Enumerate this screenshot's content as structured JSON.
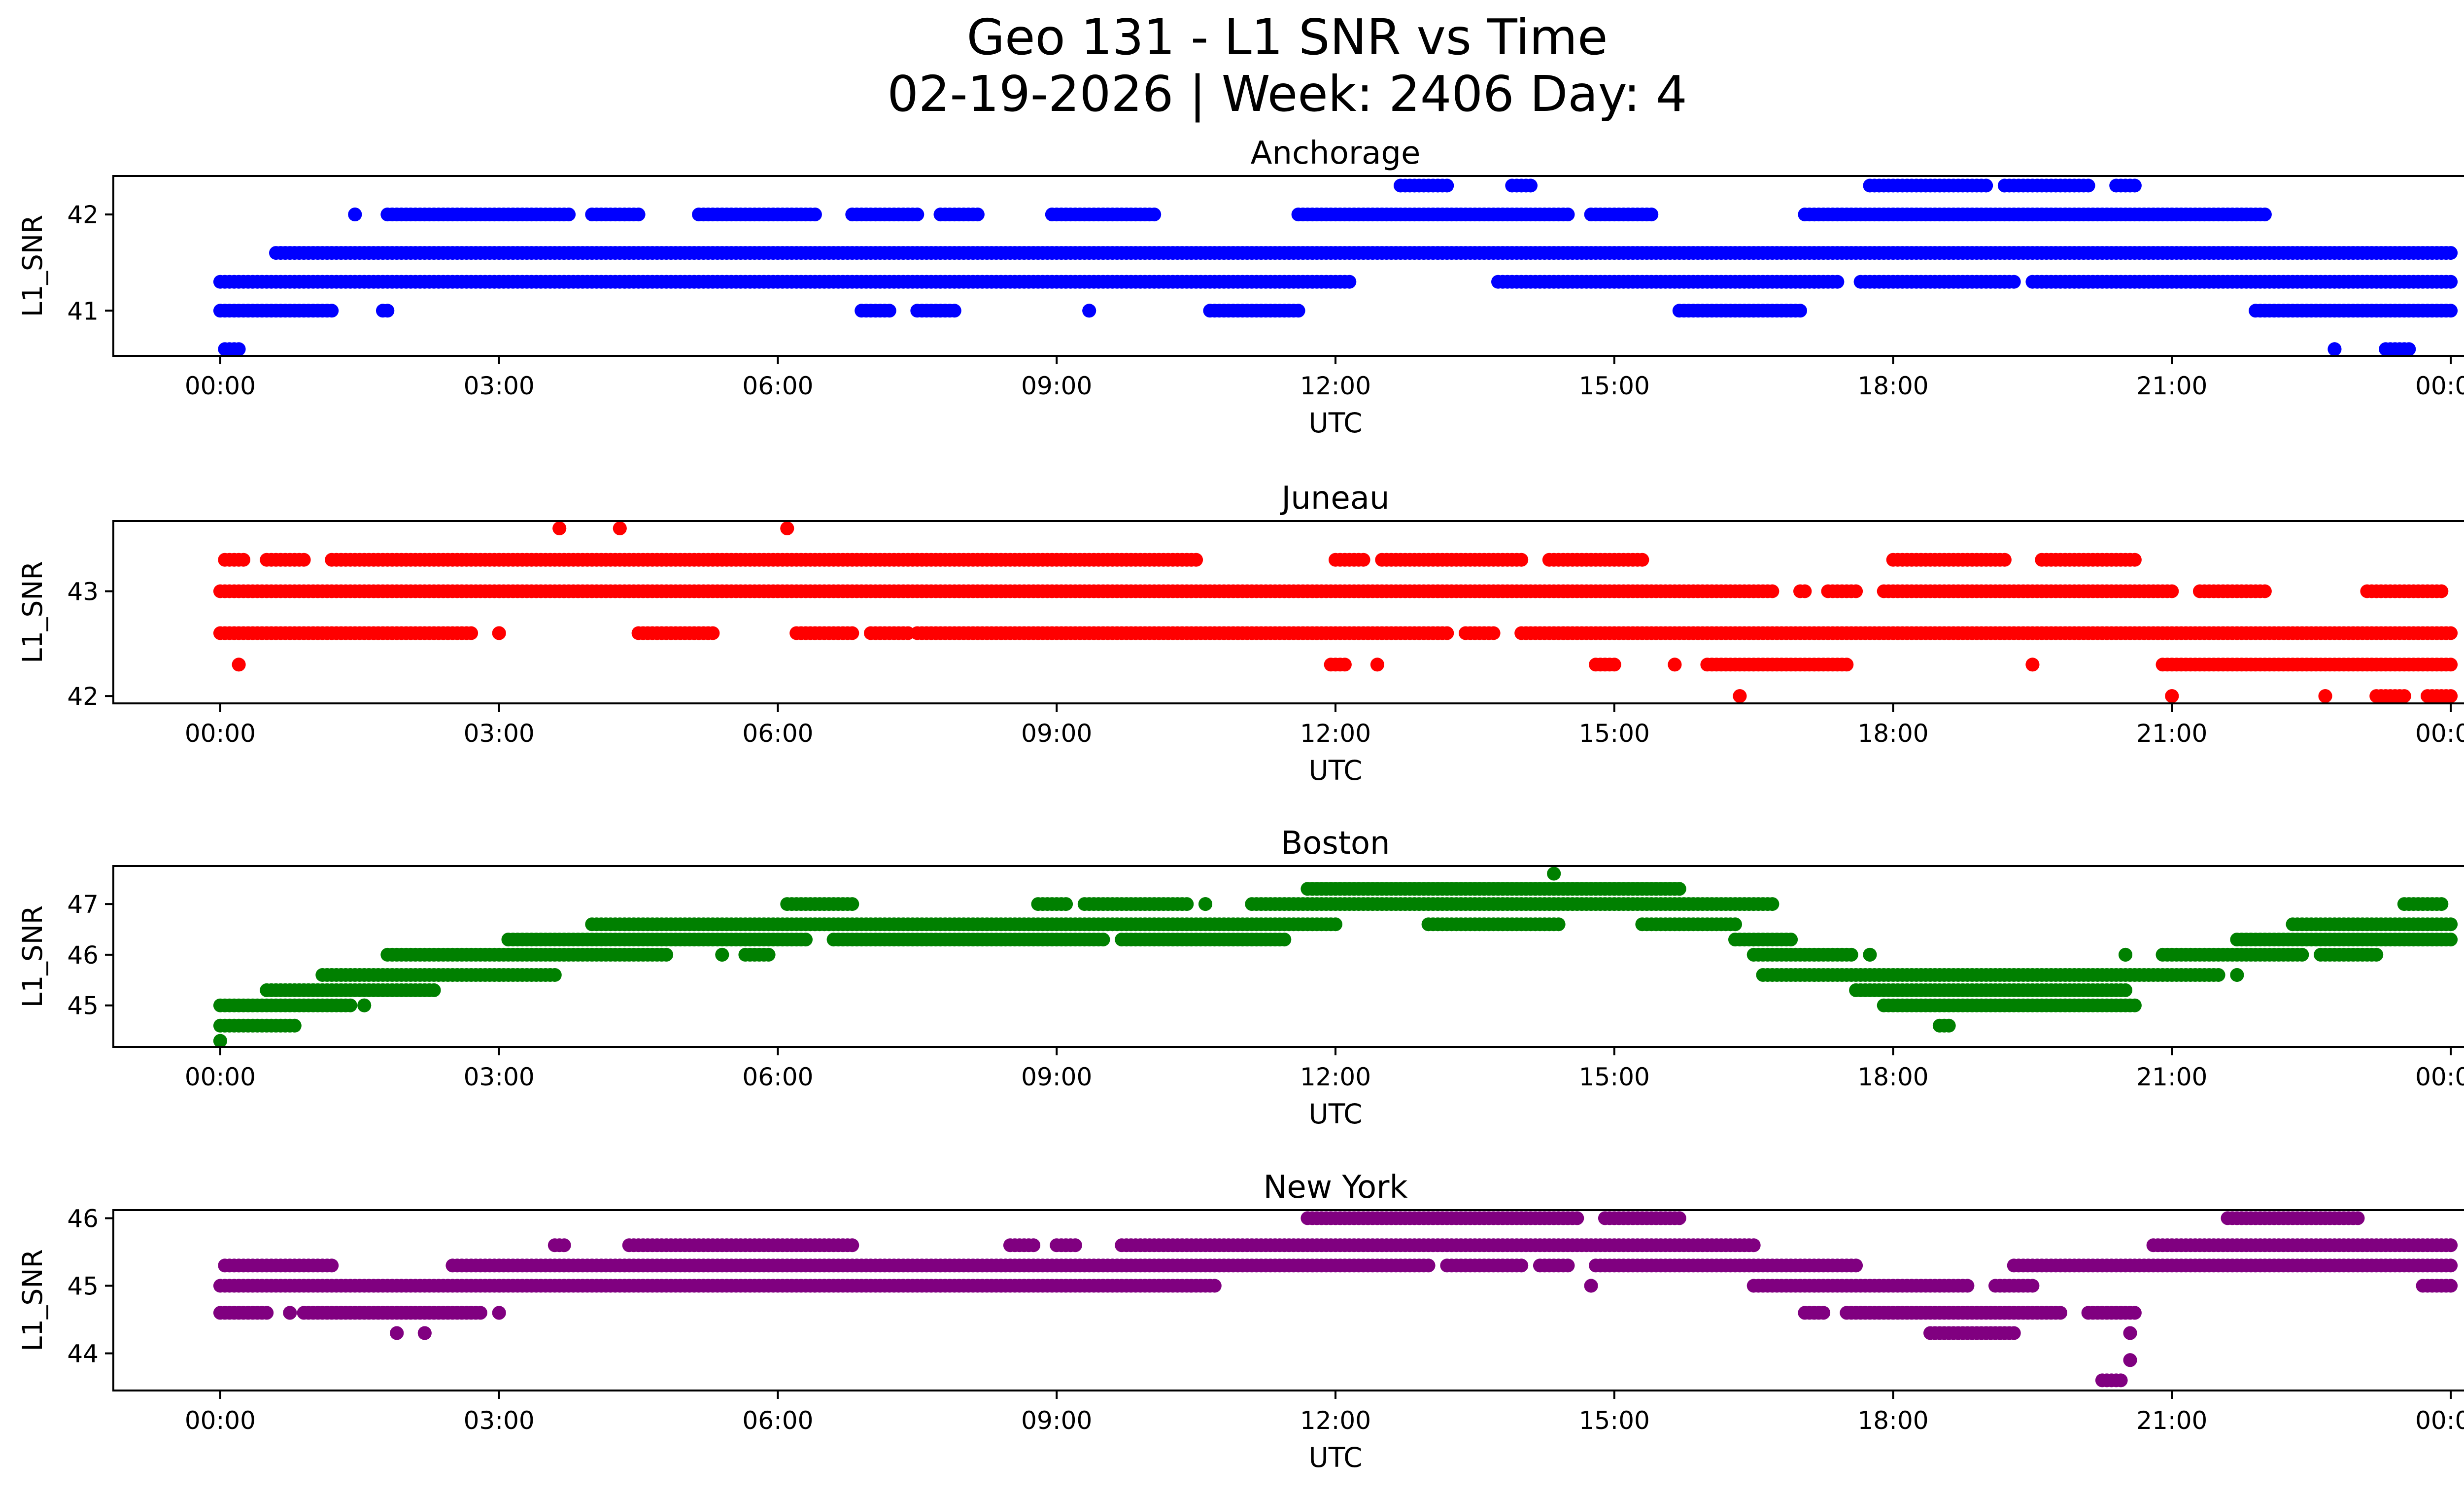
{
  "figure": {
    "title_line1": "Geo 131 - L1 SNR vs Time",
    "title_line2": "02-19-2026 | Week: 2406 Day: 4"
  },
  "chart_data": [
    {
      "type": "scatter",
      "title": "Anchorage",
      "xlabel": "UTC",
      "ylabel": "L1_SNR",
      "color": "#0000ff",
      "x_unit": "hours_utc",
      "xlim": [
        -1.15,
        25.15
      ],
      "ylim": [
        40.53,
        42.4
      ],
      "xticks": [
        0,
        3,
        6,
        9,
        12,
        15,
        18,
        21,
        24
      ],
      "xtick_labels": [
        "00:00",
        "03:00",
        "06:00",
        "09:00",
        "12:00",
        "15:00",
        "18:00",
        "21:00",
        "00:00"
      ],
      "yticks": [
        41,
        42
      ],
      "ytick_labels": [
        "41",
        "42"
      ],
      "bands": [
        {
          "y": 41.3,
          "segments": [
            [
              0,
              12.15
            ],
            [
              13.75,
              17.4
            ],
            [
              17.65,
              19.3
            ],
            [
              19.5,
              24
            ]
          ]
        },
        {
          "y": 41.6,
          "segments": [
            [
              0.6,
              24
            ]
          ]
        },
        {
          "y": 42.0,
          "segments": [
            [
              1.45,
              1.45
            ],
            [
              1.8,
              3.75
            ],
            [
              4.0,
              4.5
            ],
            [
              5.15,
              6.4
            ],
            [
              6.8,
              7.5
            ],
            [
              7.75,
              8.15
            ],
            [
              8.95,
              10.05
            ],
            [
              11.6,
              14.5
            ],
            [
              14.75,
              15.4
            ],
            [
              17.05,
              22.0
            ]
          ]
        },
        {
          "y": 42.3,
          "segments": [
            [
              12.7,
              13.2
            ],
            [
              13.9,
              14.1
            ],
            [
              17.75,
              19.0
            ],
            [
              19.2,
              20.1
            ],
            [
              20.4,
              20.6
            ]
          ]
        },
        {
          "y": 41.0,
          "segments": [
            [
              0,
              1.2
            ],
            [
              1.75,
              1.8
            ],
            [
              6.9,
              7.2
            ],
            [
              7.5,
              7.9
            ],
            [
              9.35,
              9.35
            ],
            [
              10.65,
              11.6
            ],
            [
              15.7,
              17.0
            ],
            [
              21.9,
              24
            ]
          ]
        },
        {
          "y": 40.6,
          "segments": [
            [
              0.05,
              0.2
            ],
            [
              22.75,
              22.75
            ],
            [
              23.3,
              23.55
            ]
          ]
        }
      ]
    },
    {
      "type": "scatter",
      "title": "Juneau",
      "xlabel": "UTC",
      "ylabel": "L1_SNR",
      "color": "#ff0000",
      "x_unit": "hours_utc",
      "xlim": [
        -1.15,
        25.15
      ],
      "ylim": [
        41.93,
        43.67
      ],
      "xticks": [
        0,
        3,
        6,
        9,
        12,
        15,
        18,
        21,
        24
      ],
      "xtick_labels": [
        "00:00",
        "03:00",
        "06:00",
        "09:00",
        "12:00",
        "15:00",
        "18:00",
        "21:00",
        "00:00"
      ],
      "yticks": [
        42,
        43
      ],
      "ytick_labels": [
        "42",
        "43"
      ],
      "bands": [
        {
          "y": 43.0,
          "segments": [
            [
              0,
              16.7
            ],
            [
              17.0,
              17.05
            ],
            [
              17.3,
              17.6
            ],
            [
              17.9,
              21.0
            ],
            [
              21.3,
              22.0
            ],
            [
              23.1,
              23.9
            ]
          ]
        },
        {
          "y": 43.3,
          "segments": [
            [
              0.05,
              0.25
            ],
            [
              0.5,
              0.9
            ],
            [
              1.2,
              10.5
            ],
            [
              12.0,
              12.3
            ],
            [
              12.5,
              14.0
            ],
            [
              14.3,
              15.3
            ],
            [
              18.0,
              19.2
            ],
            [
              19.6,
              20.6
            ]
          ]
        },
        {
          "y": 42.6,
          "segments": [
            [
              0,
              2.7
            ],
            [
              3.0,
              3.0
            ],
            [
              4.5,
              5.3
            ],
            [
              6.2,
              6.8
            ],
            [
              7.0,
              7.4
            ],
            [
              7.5,
              13.2
            ],
            [
              13.4,
              13.7
            ],
            [
              14.0,
              24
            ]
          ]
        },
        {
          "y": 42.3,
          "segments": [
            [
              0.2,
              0.2
            ],
            [
              11.95,
              12.1
            ],
            [
              12.45,
              12.45
            ],
            [
              14.8,
              15.0
            ],
            [
              15.65,
              15.65
            ],
            [
              16.0,
              17.5
            ],
            [
              19.5,
              19.5
            ],
            [
              20.9,
              24
            ]
          ]
        },
        {
          "y": 42.0,
          "segments": [
            [
              16.35,
              16.35
            ],
            [
              21.0,
              21.0
            ],
            [
              22.65,
              22.65
            ],
            [
              23.2,
              23.5
            ],
            [
              23.75,
              24
            ]
          ]
        },
        {
          "y": 43.6,
          "segments": [
            [
              3.65,
              3.65
            ],
            [
              4.3,
              4.3
            ],
            [
              6.1,
              6.1
            ]
          ]
        }
      ]
    },
    {
      "type": "scatter",
      "title": "Boston",
      "xlabel": "UTC",
      "ylabel": "L1_SNR",
      "color": "#008000",
      "x_unit": "hours_utc",
      "xlim": [
        -1.15,
        25.15
      ],
      "ylim": [
        44.18,
        47.75
      ],
      "xticks": [
        0,
        3,
        6,
        9,
        12,
        15,
        18,
        21,
        24
      ],
      "xtick_labels": [
        "00:00",
        "03:00",
        "06:00",
        "09:00",
        "12:00",
        "15:00",
        "18:00",
        "21:00",
        "00:00"
      ],
      "yticks": [
        45,
        46,
        47
      ],
      "ytick_labels": [
        "45",
        "46",
        "47"
      ],
      "bands": [
        {
          "y": 44.3,
          "segments": [
            [
              0,
              0
            ]
          ]
        },
        {
          "y": 44.6,
          "segments": [
            [
              0,
              0.8
            ],
            [
              18.5,
              18.6
            ]
          ]
        },
        {
          "y": 45.0,
          "segments": [
            [
              0,
              1.4
            ],
            [
              1.55,
              1.55
            ],
            [
              17.9,
              20.6
            ]
          ]
        },
        {
          "y": 45.3,
          "segments": [
            [
              0.5,
              2.3
            ],
            [
              17.6,
              20.5
            ]
          ]
        },
        {
          "y": 45.6,
          "segments": [
            [
              1.1,
              3.6
            ],
            [
              16.6,
              21.5
            ],
            [
              21.7,
              21.7
            ]
          ]
        },
        {
          "y": 46.0,
          "segments": [
            [
              1.8,
              4.8
            ],
            [
              5.4,
              5.4
            ],
            [
              5.65,
              5.9
            ],
            [
              16.5,
              17.55
            ],
            [
              17.75,
              17.75
            ],
            [
              20.5,
              20.5
            ],
            [
              20.9,
              22.4
            ],
            [
              22.6,
              23.2
            ]
          ]
        },
        {
          "y": 46.3,
          "segments": [
            [
              3.1,
              6.3
            ],
            [
              6.6,
              9.5
            ],
            [
              9.7,
              11.45
            ],
            [
              16.3,
              16.9
            ],
            [
              21.7,
              24
            ]
          ]
        },
        {
          "y": 46.6,
          "segments": [
            [
              4.0,
              12.0
            ],
            [
              13.0,
              14.4
            ],
            [
              15.3,
              16.3
            ],
            [
              22.3,
              24
            ]
          ]
        },
        {
          "y": 47.0,
          "segments": [
            [
              6.1,
              6.8
            ],
            [
              8.8,
              9.1
            ],
            [
              9.3,
              10.4
            ],
            [
              10.6,
              10.6
            ],
            [
              11.1,
              16.7
            ],
            [
              23.5,
              23.9
            ]
          ]
        },
        {
          "y": 47.3,
          "segments": [
            [
              11.7,
              15.7
            ]
          ]
        },
        {
          "y": 47.6,
          "segments": [
            [
              14.35,
              14.35
            ]
          ]
        }
      ]
    },
    {
      "type": "scatter",
      "title": "New York",
      "xlabel": "UTC",
      "ylabel": "L1_SNR",
      "color": "#800080",
      "x_unit": "hours_utc",
      "xlim": [
        -1.15,
        25.15
      ],
      "ylim": [
        43.45,
        46.12
      ],
      "xticks": [
        0,
        3,
        6,
        9,
        12,
        15,
        18,
        21,
        24
      ],
      "xtick_labels": [
        "00:00",
        "03:00",
        "06:00",
        "09:00",
        "12:00",
        "15:00",
        "18:00",
        "21:00",
        "00:00"
      ],
      "yticks": [
        44,
        45,
        46
      ],
      "ytick_labels": [
        "44",
        "45",
        "46"
      ],
      "bands": [
        {
          "y": 43.6,
          "segments": [
            [
              20.25,
              20.45
            ]
          ]
        },
        {
          "y": 43.9,
          "segments": [
            [
              20.55,
              20.55
            ]
          ]
        },
        {
          "y": 44.3,
          "segments": [
            [
              1.9,
              1.9
            ],
            [
              2.2,
              2.2
            ],
            [
              18.4,
              19.3
            ],
            [
              20.55,
              20.55
            ]
          ]
        },
        {
          "y": 44.6,
          "segments": [
            [
              0,
              0.5
            ],
            [
              0.75,
              0.75
            ],
            [
              0.9,
              2.8
            ],
            [
              3.0,
              3.0
            ],
            [
              17.05,
              17.25
            ],
            [
              17.5,
              19.8
            ],
            [
              20.1,
              20.6
            ]
          ]
        },
        {
          "y": 45.0,
          "segments": [
            [
              0,
              10.7
            ],
            [
              14.75,
              14.75
            ],
            [
              16.5,
              18.8
            ],
            [
              19.1,
              19.5
            ],
            [
              23.7,
              24
            ]
          ]
        },
        {
          "y": 45.3,
          "segments": [
            [
              0.05,
              1.2
            ],
            [
              2.5,
              13.0
            ],
            [
              13.2,
              14.0
            ],
            [
              14.2,
              14.5
            ],
            [
              14.8,
              17.6
            ],
            [
              19.3,
              24
            ]
          ]
        },
        {
          "y": 45.6,
          "segments": [
            [
              3.6,
              3.7
            ],
            [
              4.4,
              6.8
            ],
            [
              8.5,
              8.75
            ],
            [
              9.0,
              9.2
            ],
            [
              9.7,
              16.5
            ],
            [
              20.8,
              24
            ]
          ]
        },
        {
          "y": 46.0,
          "segments": [
            [
              11.7,
              14.6
            ],
            [
              14.9,
              15.7
            ],
            [
              21.6,
              23.0
            ]
          ]
        }
      ]
    }
  ]
}
